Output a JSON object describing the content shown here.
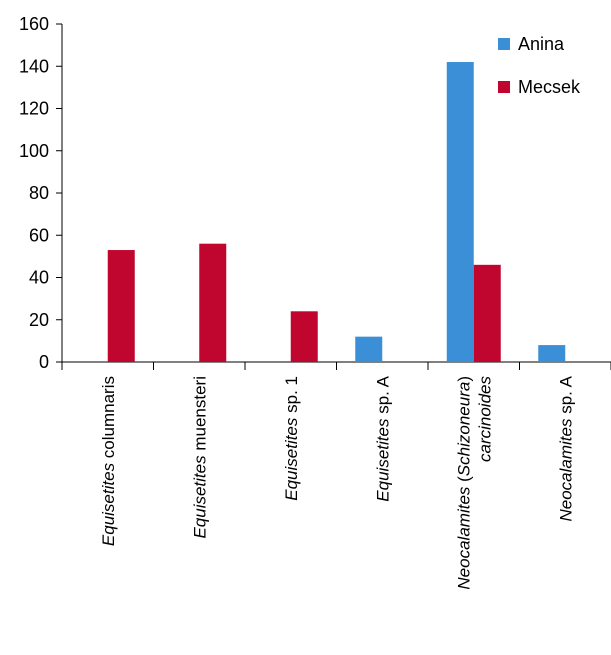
{
  "chart_data": {
    "type": "bar",
    "title": "",
    "xlabel": "",
    "ylabel": "",
    "ylim": [
      0,
      160
    ],
    "yticks": [
      0,
      20,
      40,
      60,
      80,
      100,
      120,
      140,
      160
    ],
    "grid": false,
    "legend_position": "top-right",
    "categories": [
      {
        "italic": "Equisetites",
        "rest": " columnaris",
        "second_line": ""
      },
      {
        "italic": "Equisetites",
        "rest": " muensteri",
        "second_line": ""
      },
      {
        "italic": "Equisetites",
        "rest": " sp. 1",
        "second_line": ""
      },
      {
        "italic": "Equisetites",
        "rest": " sp. A",
        "second_line": ""
      },
      {
        "italic": "Neocalamites",
        "rest": " (Schizoneura)",
        "second_line": "carcinoides"
      },
      {
        "italic": "Neocalamites",
        "rest": " sp. A",
        "second_line": ""
      }
    ],
    "series": [
      {
        "name": "Anina",
        "color": "#3a8fd6",
        "values": [
          0,
          0,
          0,
          12,
          142,
          8
        ]
      },
      {
        "name": "Mecsek",
        "color": "#c0062e",
        "values": [
          53,
          56,
          24,
          0,
          46,
          0
        ]
      }
    ]
  }
}
